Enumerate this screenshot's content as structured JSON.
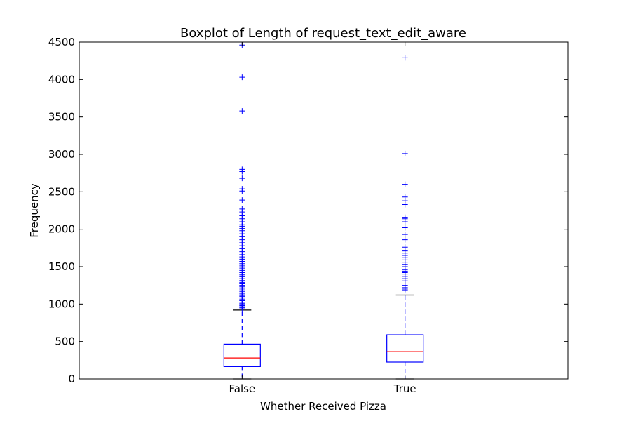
{
  "chart_data": {
    "type": "boxplot",
    "title": "Boxplot of Length of request_text_edit_aware",
    "xlabel": "Whether Received Pizza",
    "ylabel": "Frequency",
    "ylim": [
      0,
      4500
    ],
    "yticks": [
      "0",
      "500",
      "1000",
      "1500",
      "2000",
      "2500",
      "3000",
      "3500",
      "4000",
      "4500"
    ],
    "grid": false,
    "colors": {
      "box": "#0000ff",
      "median": "#ff0000",
      "whisker": "#0000ff",
      "cap": "#000000",
      "flier": "#0000ff"
    },
    "categories": [
      "False",
      "True"
    ],
    "boxes": [
      {
        "name": "False",
        "whislo": 0,
        "q1": 165,
        "median": 280,
        "q3": 465,
        "whishi": 920,
        "fliers": [
          935,
          950,
          965,
          980,
          995,
          1010,
          1025,
          1045,
          1060,
          1080,
          1100,
          1115,
          1135,
          1150,
          1170,
          1190,
          1210,
          1230,
          1250,
          1270,
          1290,
          1315,
          1340,
          1365,
          1390,
          1420,
          1450,
          1480,
          1510,
          1540,
          1570,
          1600,
          1630,
          1660,
          1700,
          1740,
          1780,
          1820,
          1860,
          1900,
          1940,
          1980,
          2010,
          2040,
          2060,
          2100,
          2140,
          2180,
          2230,
          2270,
          2390,
          2510,
          2540,
          2680,
          2770,
          2800,
          3580,
          4030,
          4460
        ]
      },
      {
        "name": "True",
        "whislo": 0,
        "q1": 225,
        "median": 365,
        "q3": 590,
        "whishi": 1120,
        "fliers": [
          1180,
          1200,
          1220,
          1250,
          1280,
          1310,
          1340,
          1370,
          1400,
          1420,
          1440,
          1460,
          1500,
          1530,
          1560,
          1590,
          1620,
          1650,
          1680,
          1710,
          1760,
          1860,
          1930,
          2020,
          2100,
          2140,
          2160,
          2330,
          2380,
          2430,
          2600,
          3010,
          4290
        ]
      }
    ]
  }
}
